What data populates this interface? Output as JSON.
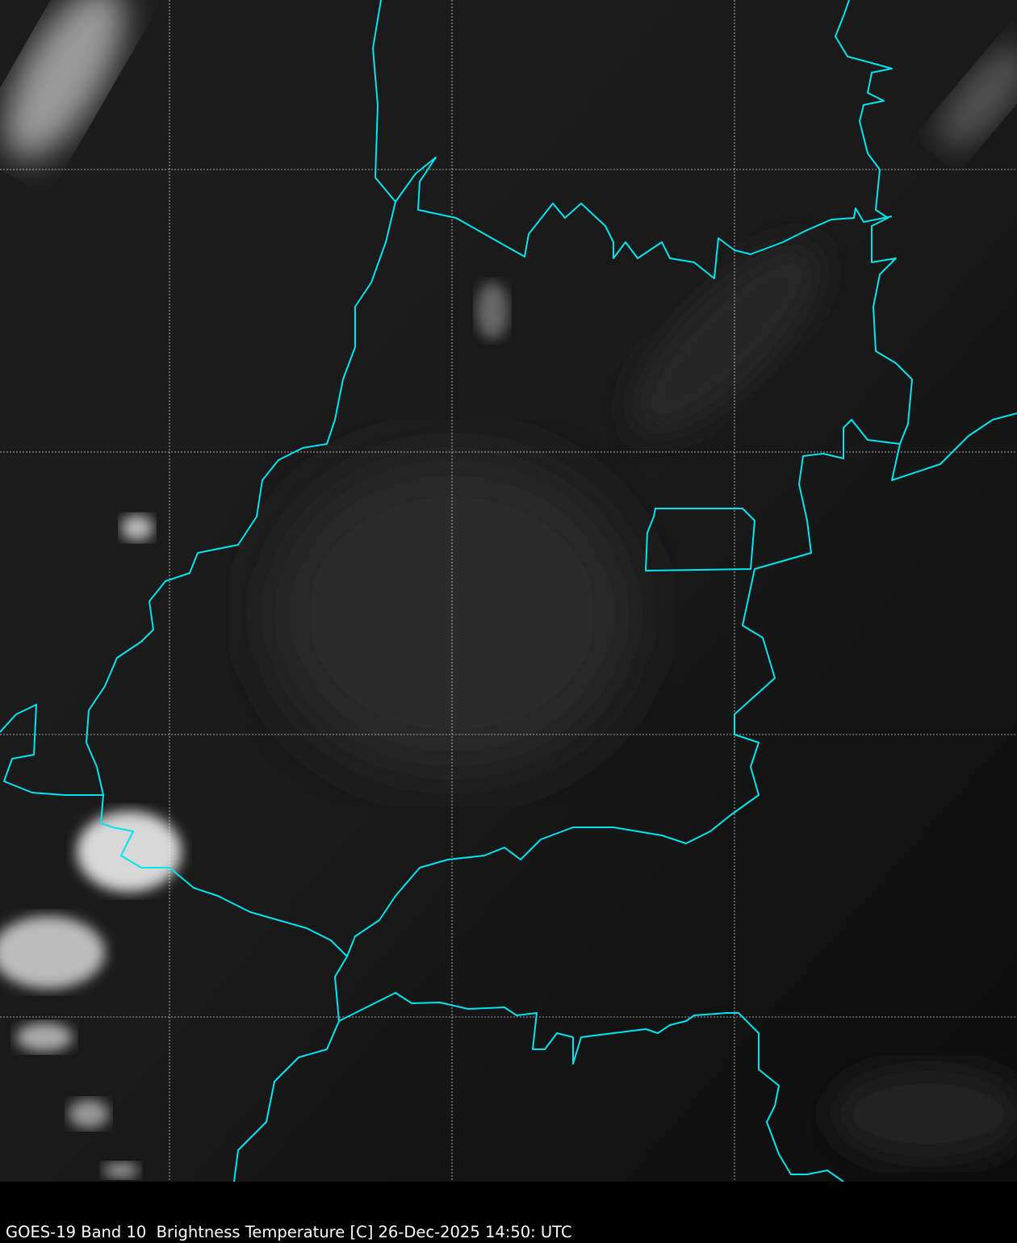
{
  "caption": "GOES-19 Band 10  Brightness Temperature [C] 26-Dec-2025 14:50: UTC",
  "map": {
    "imagery": "satellite infrared brightness temperature",
    "border_color": "#00e5ee",
    "gridline_color": "#ffffff",
    "background_color": "#1a1a1a",
    "gridlines": "dotted"
  }
}
